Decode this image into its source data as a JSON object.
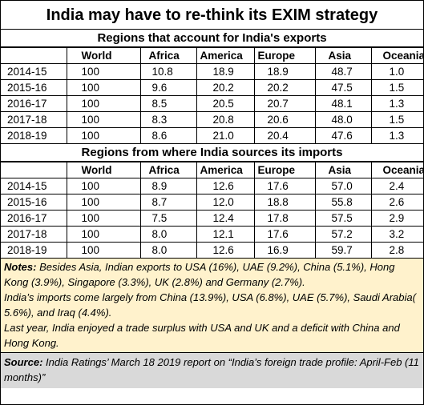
{
  "title": "India may have to re-think its EXIM strategy",
  "exports": {
    "heading": "Regions that account for India's exports",
    "columns": [
      "",
      "World",
      "Africa",
      "America",
      "Europe",
      "Asia",
      "Oceania"
    ],
    "rows": [
      [
        "2014-15",
        "100",
        "10.8",
        "18.9",
        "18.9",
        "48.7",
        "1.0"
      ],
      [
        "2015-16",
        "100",
        "9.6",
        "20.2",
        "20.2",
        "47.5",
        "1.5"
      ],
      [
        "2016-17",
        "100",
        "8.5",
        "20.5",
        "20.7",
        "48.1",
        "1.3"
      ],
      [
        "2017-18",
        "100",
        "8.3",
        "20.8",
        "20.6",
        "48.0",
        "1.5"
      ],
      [
        "2018-19",
        "100",
        "8.6",
        "21.0",
        "20.4",
        "47.6",
        "1.3"
      ]
    ]
  },
  "imports": {
    "heading": "Regions from where India sources its imports",
    "columns": [
      "",
      "World",
      "Africa",
      "America",
      "Europe",
      "Asia",
      "Oceania"
    ],
    "rows": [
      [
        "2014-15",
        "100",
        "8.9",
        "12.6",
        "17.6",
        "57.0",
        "2.4"
      ],
      [
        "2015-16",
        "100",
        "8.7",
        "12.0",
        "18.8",
        "55.8",
        "2.6"
      ],
      [
        "2016-17",
        "100",
        "7.5",
        "12.4",
        "17.8",
        "57.5",
        "2.9"
      ],
      [
        "2017-18",
        "100",
        "8.0",
        "12.1",
        "17.6",
        "57.2",
        "3.2"
      ],
      [
        "2018-19",
        "100",
        "8.0",
        "12.6",
        "16.9",
        "59.7",
        "2.8"
      ]
    ]
  },
  "notes": {
    "label": "Notes:",
    "line1": " Besides Asia, Indian exports to USA (16%), UAE (9.2%), China (5.1%), Hong Kong (3.9%), Singapore (3.3%), UK (2.8%) and Germany (2.7%).",
    "line2": "India’s imports come largely from China (13.9%), USA (6.8%), UAE (5.7%), Saudi Arabia( 5.6%), and Iraq (4.4%).",
    "line3": "Last year, India enjoyed a trade surplus with USA and UK and a deficit with China and Hong Kong."
  },
  "source": {
    "label": "Source:",
    "text": "  India Ratings’ March 18 2019 report on “India’s foreign trade profile: April-Feb (11 months)”"
  },
  "colors": {
    "notes_bg": "#fff2cc",
    "source_bg": "#d9d9d9"
  }
}
